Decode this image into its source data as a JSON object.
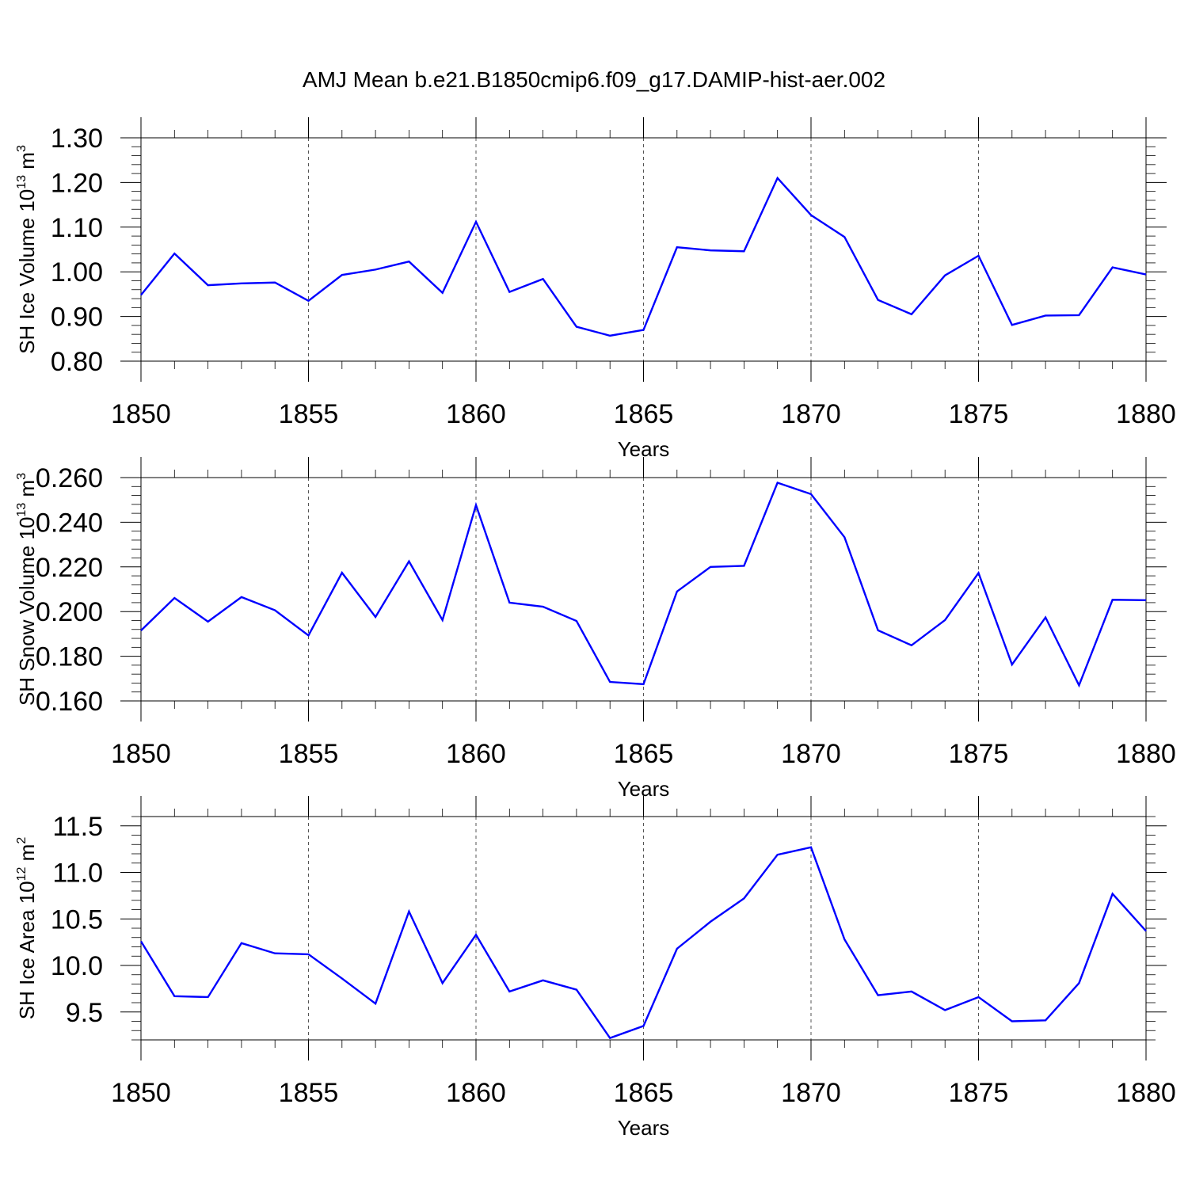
{
  "title": "AMJ Mean b.e21.B1850cmip6.f09_g17.DAMIP-hist-aer.002",
  "colors": {
    "line": "#0000ff",
    "grid": "#555555",
    "frame": "#000000"
  },
  "chart_data": [
    {
      "type": "line",
      "ylabel_main": "SH Ice Volume 10",
      "ylabel_exp": "13",
      "ylabel_unit": " m",
      "ylabel_unit_exp": "3",
      "xlabel": "Years",
      "xlim": [
        1850,
        1880
      ],
      "ylim": [
        0.8,
        1.3
      ],
      "yticks": [
        0.8,
        0.9,
        1.0,
        1.1,
        1.2,
        1.3
      ],
      "ytick_labels": [
        "0.80",
        "0.90",
        "1.00",
        "1.10",
        "1.20",
        "1.30"
      ],
      "xticks": [
        1850,
        1855,
        1860,
        1865,
        1870,
        1875,
        1880
      ],
      "xtick_labels": [
        "1850",
        "1855",
        "1860",
        "1865",
        "1870",
        "1875",
        "1880"
      ],
      "grid": "vertical dashed",
      "x": [
        1850,
        1851,
        1852,
        1853,
        1854,
        1855,
        1856,
        1857,
        1858,
        1859,
        1860,
        1861,
        1862,
        1863,
        1864,
        1865,
        1866,
        1867,
        1868,
        1869,
        1870,
        1871,
        1872,
        1873,
        1874,
        1875,
        1876,
        1877,
        1878,
        1879,
        1880
      ],
      "values": [
        0.948,
        1.041,
        0.97,
        0.974,
        0.976,
        0.935,
        0.993,
        1.005,
        1.023,
        0.953,
        1.112,
        0.955,
        0.984,
        0.877,
        0.857,
        0.87,
        1.055,
        1.048,
        1.046,
        1.21,
        1.127,
        1.078,
        0.937,
        0.905,
        0.992,
        1.036,
        0.881,
        0.902,
        0.903,
        1.01,
        0.994
      ]
    },
    {
      "type": "line",
      "ylabel_main": "SH Snow Volume 10",
      "ylabel_exp": "13",
      "ylabel_unit": " m",
      "ylabel_unit_exp": "3",
      "xlabel": "Years",
      "xlim": [
        1850,
        1880
      ],
      "ylim": [
        0.16,
        0.26
      ],
      "yticks": [
        0.16,
        0.18,
        0.2,
        0.22,
        0.24,
        0.26
      ],
      "ytick_labels": [
        "0.160",
        "0.180",
        "0.200",
        "0.220",
        "0.240",
        "0.260"
      ],
      "xticks": [
        1850,
        1855,
        1860,
        1865,
        1870,
        1875,
        1880
      ],
      "xtick_labels": [
        "1850",
        "1855",
        "1860",
        "1865",
        "1870",
        "1875",
        "1880"
      ],
      "grid": "vertical dashed",
      "x": [
        1850,
        1851,
        1852,
        1853,
        1854,
        1855,
        1856,
        1857,
        1858,
        1859,
        1860,
        1861,
        1862,
        1863,
        1864,
        1865,
        1866,
        1867,
        1868,
        1869,
        1870,
        1871,
        1872,
        1873,
        1874,
        1875,
        1876,
        1877,
        1878,
        1879,
        1880
      ],
      "values": [
        0.1915,
        0.2061,
        0.1955,
        0.2065,
        0.2006,
        0.1893,
        0.2174,
        0.1976,
        0.2225,
        0.1962,
        0.2477,
        0.204,
        0.2022,
        0.1958,
        0.1685,
        0.1675,
        0.209,
        0.22,
        0.2205,
        0.2577,
        0.2526,
        0.2333,
        0.1916,
        0.1849,
        0.1962,
        0.2173,
        0.1763,
        0.1974,
        0.167,
        0.2053,
        0.2051
      ]
    },
    {
      "type": "line",
      "ylabel_main": "SH Ice Area 10",
      "ylabel_exp": "12",
      "ylabel_unit": " m",
      "ylabel_unit_exp": "2",
      "xlabel": "Years",
      "xlim": [
        1850,
        1880
      ],
      "ylim": [
        9.2,
        11.6
      ],
      "yticks": [
        9.5,
        10.0,
        10.5,
        11.0,
        11.5
      ],
      "ytick_labels": [
        "9.5",
        "10.0",
        "10.5",
        "11.0",
        "11.5"
      ],
      "xticks": [
        1850,
        1855,
        1860,
        1865,
        1870,
        1875,
        1880
      ],
      "xtick_labels": [
        "1850",
        "1855",
        "1860",
        "1865",
        "1870",
        "1875",
        "1880"
      ],
      "grid": "vertical dashed",
      "x": [
        1850,
        1851,
        1852,
        1853,
        1854,
        1855,
        1856,
        1857,
        1858,
        1859,
        1860,
        1861,
        1862,
        1863,
        1864,
        1865,
        1866,
        1867,
        1868,
        1869,
        1870,
        1871,
        1872,
        1873,
        1874,
        1875,
        1876,
        1877,
        1878,
        1879,
        1880
      ],
      "values": [
        10.26,
        9.67,
        9.66,
        10.24,
        10.13,
        10.12,
        9.86,
        9.59,
        10.58,
        9.81,
        10.33,
        9.72,
        9.84,
        9.74,
        9.22,
        9.35,
        10.18,
        10.47,
        10.72,
        11.19,
        11.27,
        10.28,
        9.68,
        9.72,
        9.52,
        9.66,
        9.4,
        9.41,
        9.81,
        10.77,
        10.37
      ]
    }
  ]
}
